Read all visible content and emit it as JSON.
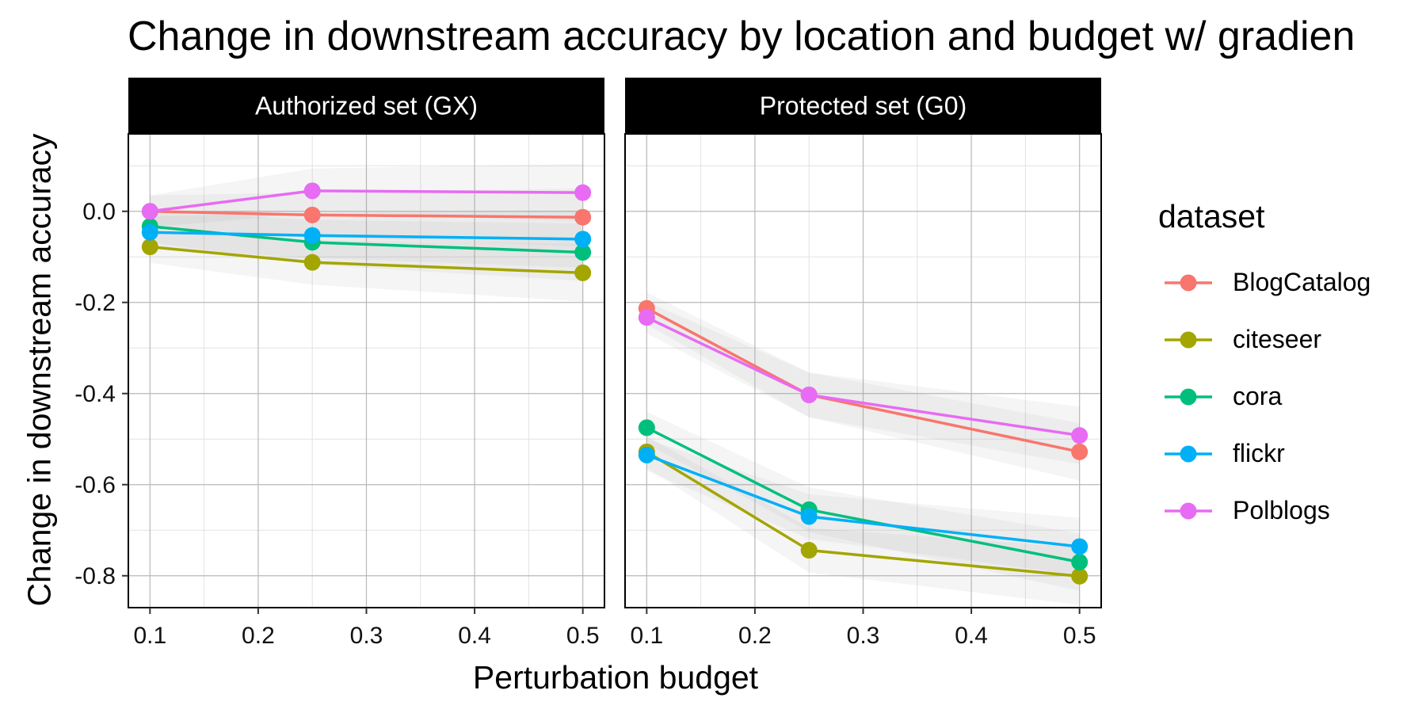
{
  "chart_data": {
    "type": "line",
    "title": "Change in downstream accuracy by location and budget w/ gradien",
    "xlabel": "Perturbation budget",
    "ylabel": "Change in downstream accuracy",
    "xlim": [
      0.08,
      0.52
    ],
    "ylim": [
      -0.87,
      0.17
    ],
    "x_ticks": [
      "0.1",
      "0.2",
      "0.3",
      "0.4",
      "0.5"
    ],
    "y_ticks": [
      "0.0",
      "-0.2",
      "-0.4",
      "-0.6",
      "-0.8"
    ],
    "grid": true,
    "legend": {
      "title": "dataset",
      "position": "right"
    },
    "panels": [
      {
        "title": "Authorized set (GX)",
        "x": [
          0.1,
          0.25,
          0.5
        ],
        "series": [
          {
            "name": "BlogCatalog",
            "color": "#F8766D",
            "values": [
              0.0,
              -0.008,
              -0.013
            ]
          },
          {
            "name": "citeseer",
            "color": "#A3A500",
            "values": [
              -0.078,
              -0.112,
              -0.135
            ]
          },
          {
            "name": "cora",
            "color": "#00BF7D",
            "values": [
              -0.033,
              -0.068,
              -0.09
            ]
          },
          {
            "name": "flickr",
            "color": "#00B0F6",
            "values": [
              -0.046,
              -0.053,
              -0.061
            ]
          },
          {
            "name": "Polblogs",
            "color": "#E76BF3",
            "values": [
              0.0,
              0.045,
              0.041
            ]
          }
        ]
      },
      {
        "title": "Protected set (G0)",
        "x": [
          0.1,
          0.25,
          0.5
        ],
        "series": [
          {
            "name": "BlogCatalog",
            "color": "#F8766D",
            "values": [
              -0.213,
              -0.403,
              -0.528
            ]
          },
          {
            "name": "citeseer",
            "color": "#A3A500",
            "values": [
              -0.528,
              -0.744,
              -0.801
            ]
          },
          {
            "name": "cora",
            "color": "#00BF7D",
            "values": [
              -0.475,
              -0.655,
              -0.77
            ]
          },
          {
            "name": "flickr",
            "color": "#00B0F6",
            "values": [
              -0.535,
              -0.67,
              -0.736
            ]
          },
          {
            "name": "Polblogs",
            "color": "#E76BF3",
            "values": [
              -0.233,
              -0.403,
              -0.492
            ]
          }
        ]
      }
    ]
  }
}
